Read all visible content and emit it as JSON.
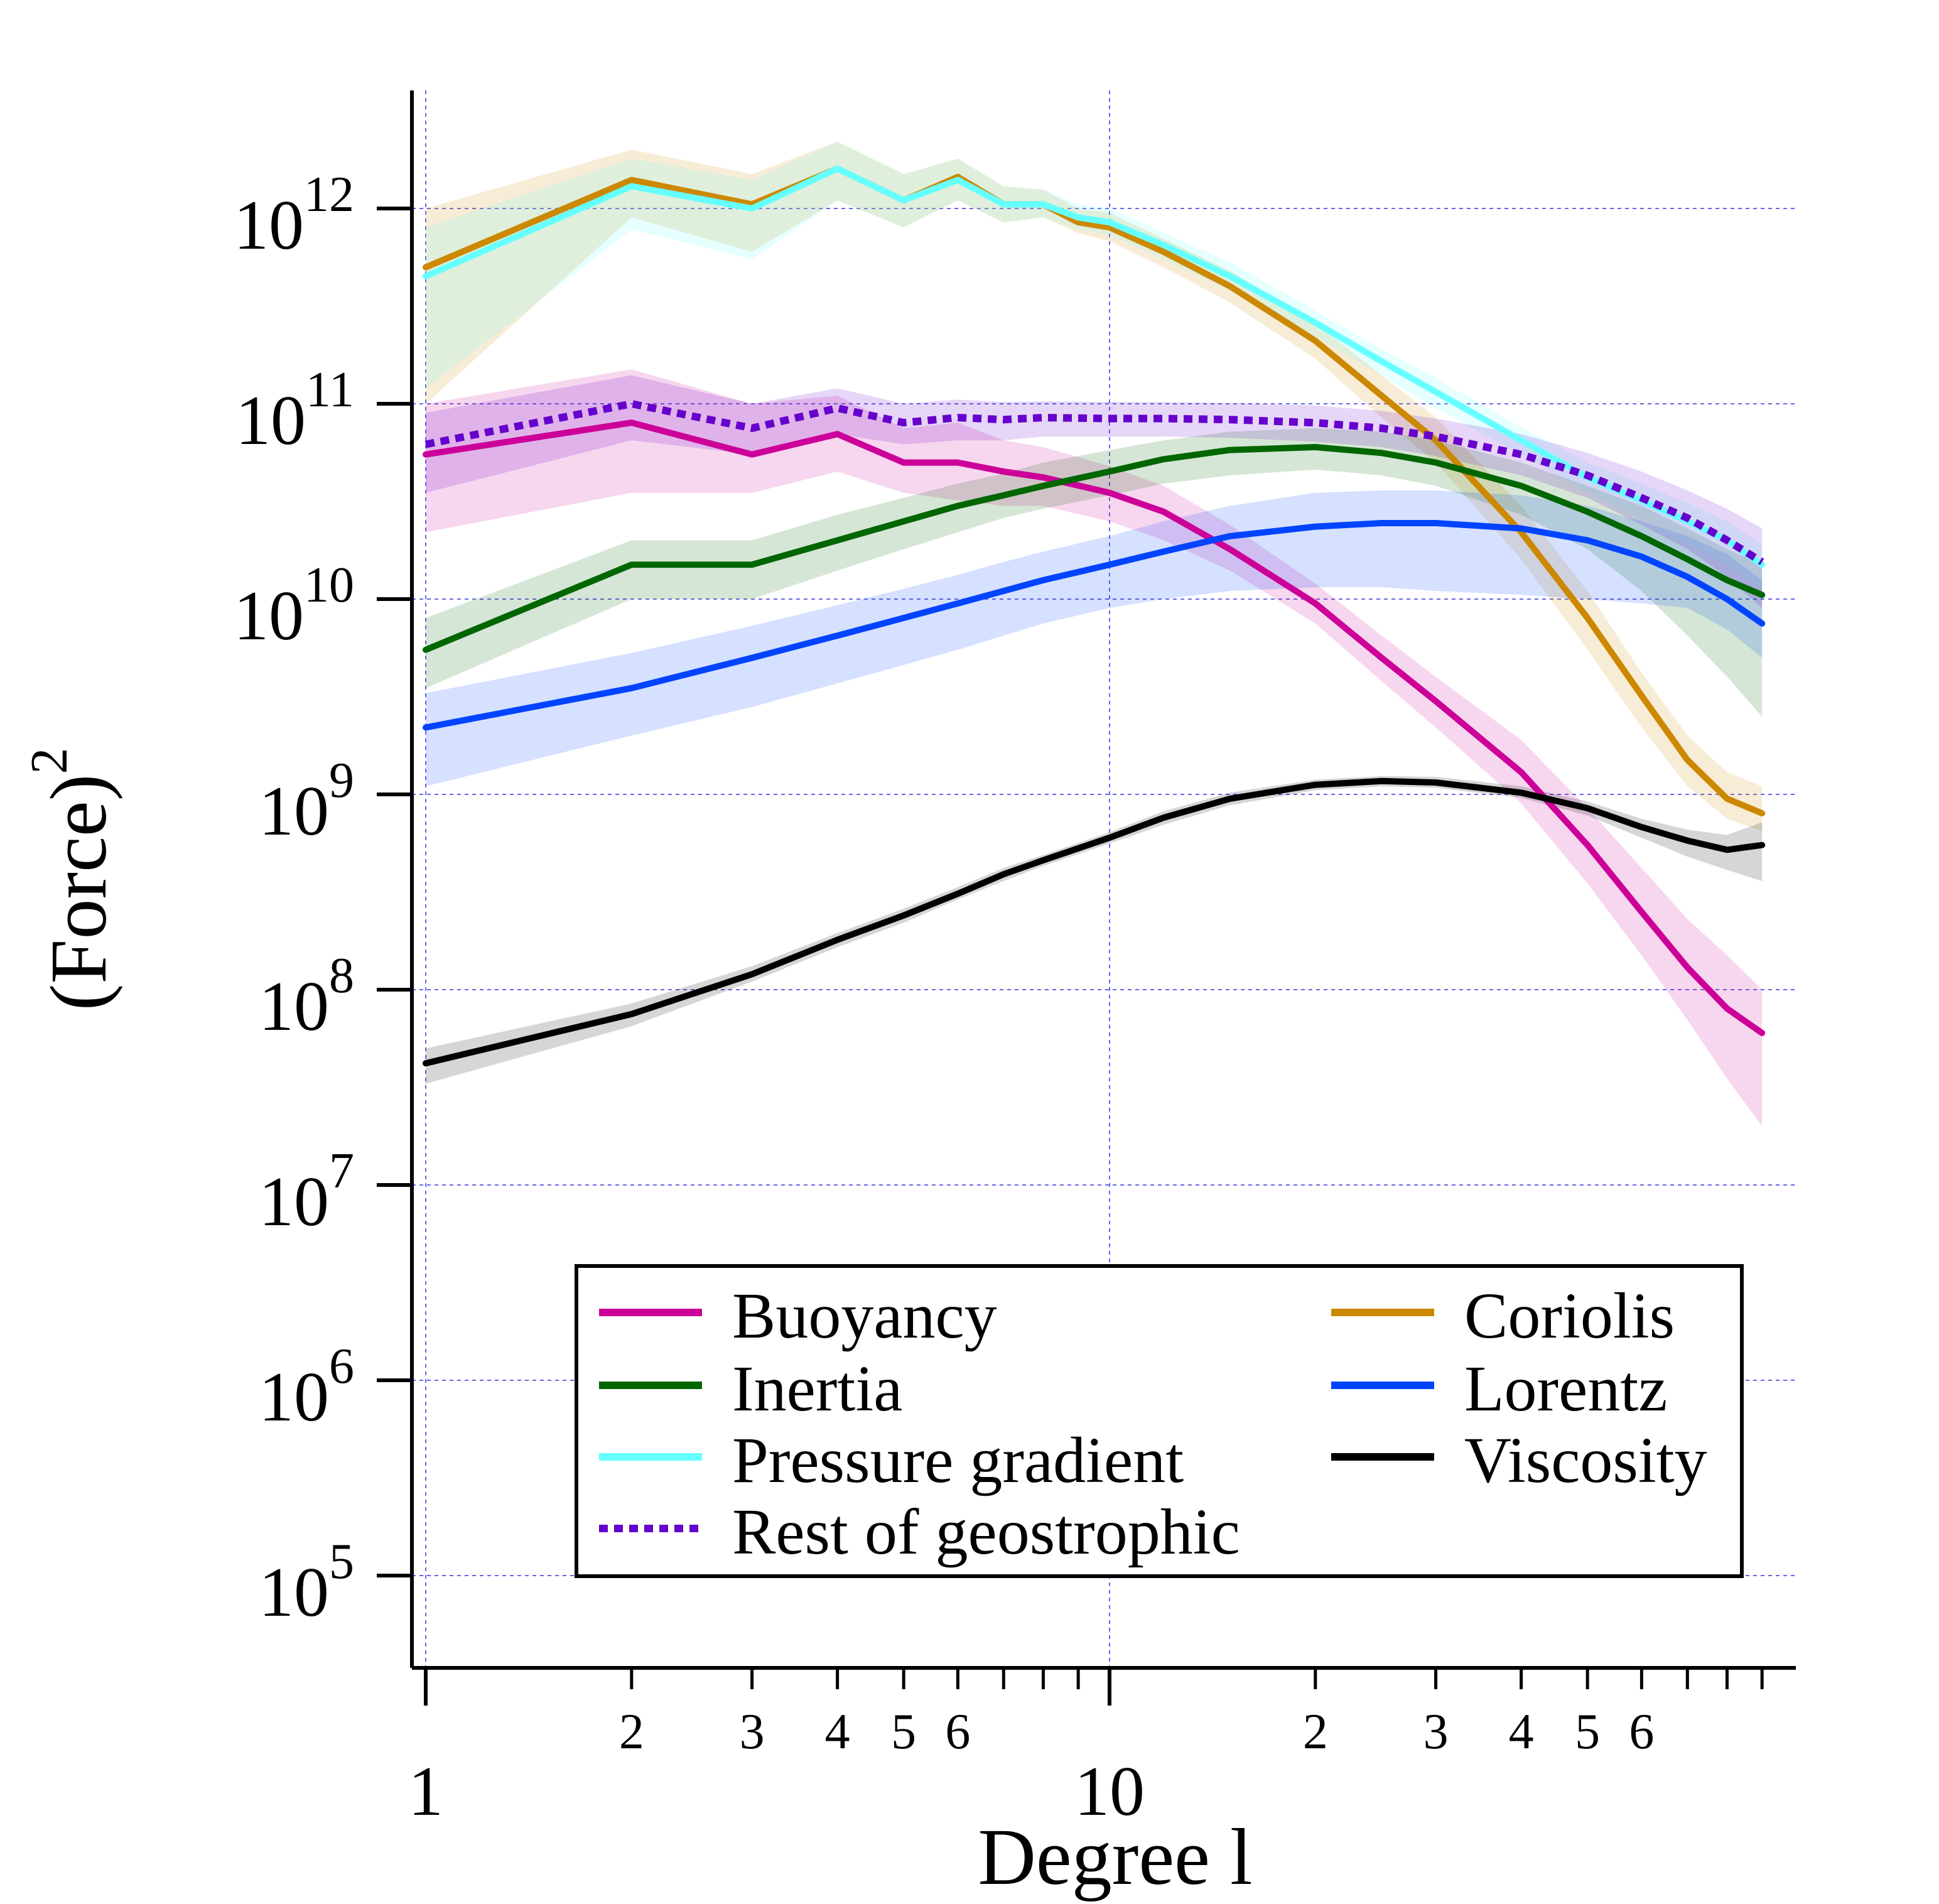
{
  "chart_data": {
    "type": "line",
    "xlabel": "Degree l",
    "ylabel": "(Force)",
    "ylabel_exponent": "2",
    "x_scale": "log",
    "y_scale": "log",
    "xlim": [
      1,
      100
    ],
    "ylim": [
      10000,
      5000000000000
    ],
    "x_major_ticks": [
      {
        "value": 1,
        "label": "1"
      },
      {
        "value": 10,
        "label": "10"
      }
    ],
    "x_minor_ticks": [
      {
        "value": 2,
        "label": "2"
      },
      {
        "value": 3,
        "label": "3"
      },
      {
        "value": 4,
        "label": "4"
      },
      {
        "value": 5,
        "label": "5"
      },
      {
        "value": 6,
        "label": "6"
      },
      {
        "value": 7,
        "label": ""
      },
      {
        "value": 8,
        "label": ""
      },
      {
        "value": 9,
        "label": ""
      },
      {
        "value": 20,
        "label": "2"
      },
      {
        "value": 30,
        "label": "3"
      },
      {
        "value": 40,
        "label": "4"
      },
      {
        "value": 50,
        "label": "5"
      },
      {
        "value": 60,
        "label": "6"
      },
      {
        "value": 70,
        "label": ""
      },
      {
        "value": 80,
        "label": ""
      },
      {
        "value": 90,
        "label": ""
      }
    ],
    "y_ticks": [
      {
        "exp": 5,
        "base": "10",
        "power": "5"
      },
      {
        "exp": 6,
        "base": "10",
        "power": "6"
      },
      {
        "exp": 7,
        "base": "10",
        "power": "7"
      },
      {
        "exp": 8,
        "base": "10",
        "power": "8"
      },
      {
        "exp": 9,
        "base": "10",
        "power": "9"
      },
      {
        "exp": 10,
        "base": "10",
        "power": "10"
      },
      {
        "exp": 11,
        "base": "10",
        "power": "11"
      },
      {
        "exp": 12,
        "base": "10",
        "power": "12"
      }
    ],
    "grid": true,
    "legend_position": "bottom-center",
    "legend_columns": 2,
    "series": [
      {
        "name": "Buoyancy",
        "color": "#cc0099",
        "style": "solid",
        "legend_col": 0,
        "legend_row": 0,
        "x": [
          1,
          2,
          3,
          4,
          5,
          6,
          7,
          8,
          10,
          12,
          15,
          20,
          25,
          30,
          40,
          50,
          60,
          70,
          80,
          90
        ],
        "y": [
          55000000000.0,
          80000000000.0,
          55000000000.0,
          70000000000.0,
          50000000000.0,
          50000000000.0,
          45000000000.0,
          42000000000.0,
          35000000000.0,
          28000000000.0,
          18000000000.0,
          9500000000.0,
          5000000000.0,
          3000000000.0,
          1300000000.0,
          550000000.0,
          250000000.0,
          130000000.0,
          80000000.0,
          60000000.0
        ],
        "lower": [
          22000000000.0,
          35000000000.0,
          35000000000.0,
          45000000000.0,
          35000000000.0,
          32000000000.0,
          30000000000.0,
          30000000000.0,
          25000000000.0,
          20000000000.0,
          14000000000.0,
          7500000000.0,
          3800000000.0,
          2200000000.0,
          900000000.0,
          350000000.0,
          150000000.0,
          70000000.0,
          35000000.0,
          20000000.0
        ],
        "upper": [
          100000000000.0,
          150000000000.0,
          100000000000.0,
          110000000000.0,
          75000000000.0,
          80000000000.0,
          65000000000.0,
          60000000000.0,
          48000000000.0,
          38000000000.0,
          24000000000.0,
          12000000000.0,
          6500000000.0,
          4000000000.0,
          1900000000.0,
          850000000.0,
          420000000.0,
          230000000.0,
          150000000.0,
          100000000.0
        ]
      },
      {
        "name": "Coriolis",
        "color": "#cc8800",
        "style": "solid",
        "legend_col": 1,
        "legend_row": 0,
        "x": [
          1,
          2,
          3,
          4,
          5,
          6,
          7,
          8,
          9,
          10,
          12,
          15,
          20,
          25,
          30,
          40,
          50,
          60,
          70,
          80,
          90
        ],
        "y": [
          500000000000.0,
          1400000000000.0,
          1050000000000.0,
          1600000000000.0,
          1100000000000.0,
          1450000000000.0,
          1050000000000.0,
          1050000000000.0,
          850000000000.0,
          800000000000.0,
          600000000000.0,
          400000000000.0,
          210000000000.0,
          110000000000.0,
          65000000000.0,
          22000000000.0,
          8000000000.0,
          3200000000.0,
          1500000000.0,
          950000000.0,
          800000000.0
        ],
        "lower": [
          100000000000.0,
          900000000000.0,
          600000000000.0,
          1100000000000.0,
          800000000000.0,
          1100000000000.0,
          850000000000.0,
          900000000000.0,
          750000000000.0,
          680000000000.0,
          500000000000.0,
          330000000000.0,
          170000000000.0,
          85000000000.0,
          50000000000.0,
          16000000000.0,
          5500000000.0,
          2200000000.0,
          1100000000.0,
          750000000.0,
          650000000.0
        ],
        "upper": [
          1000000000000.0,
          2000000000000.0,
          1500000000000.0,
          2200000000000.0,
          1500000000000.0,
          1800000000000.0,
          1300000000000.0,
          1250000000000.0,
          1000000000000.0,
          950000000000.0,
          700000000000.0,
          480000000000.0,
          260000000000.0,
          140000000000.0,
          85000000000.0,
          30000000000.0,
          11000000000.0,
          4200000000.0,
          2000000000.0,
          1300000000.0,
          1100000000.0
        ]
      },
      {
        "name": "Inertia",
        "color": "#006600",
        "style": "solid",
        "legend_col": 0,
        "legend_row": 1,
        "x": [
          1,
          2,
          3,
          4,
          5,
          6,
          7,
          8,
          10,
          12,
          15,
          20,
          25,
          30,
          40,
          50,
          60,
          70,
          80,
          90
        ],
        "y": [
          5500000000.0,
          15000000000.0,
          15000000000.0,
          20000000000.0,
          25000000000.0,
          30000000000.0,
          34000000000.0,
          38000000000.0,
          45000000000.0,
          52000000000.0,
          58000000000.0,
          60000000000.0,
          56000000000.0,
          50000000000.0,
          38000000000.0,
          28000000000.0,
          21000000000.0,
          16000000000.0,
          12500000000.0,
          10500000000.0
        ],
        "lower": [
          3500000000.0,
          10000000000.0,
          10000000000.0,
          14000000000.0,
          18000000000.0,
          22000000000.0,
          26000000000.0,
          29000000000.0,
          34000000000.0,
          39000000000.0,
          43000000000.0,
          46000000000.0,
          43000000000.0,
          38000000000.0,
          27000000000.0,
          18000000000.0,
          11000000000.0,
          6500000000.0,
          4000000000.0,
          2500000000.0
        ],
        "upper": [
          8000000000.0,
          20000000000.0,
          20000000000.0,
          27000000000.0,
          33000000000.0,
          39000000000.0,
          44000000000.0,
          50000000000.0,
          58000000000.0,
          65000000000.0,
          72000000000.0,
          75000000000.0,
          72000000000.0,
          65000000000.0,
          50000000000.0,
          38000000000.0,
          30000000000.0,
          23000000000.0,
          18000000000.0,
          15000000000.0
        ]
      },
      {
        "name": "Lorentz",
        "color": "#0044ff",
        "style": "solid",
        "legend_col": 1,
        "legend_row": 1,
        "x": [
          1,
          2,
          3,
          4,
          5,
          6,
          7,
          8,
          10,
          12,
          15,
          20,
          25,
          30,
          40,
          50,
          60,
          70,
          80,
          90
        ],
        "y": [
          2200000000.0,
          3500000000.0,
          5000000000.0,
          6500000000.0,
          8000000000.0,
          9500000000.0,
          11000000000.0,
          12500000000.0,
          15000000000.0,
          17500000000.0,
          21000000000.0,
          23500000000.0,
          24500000000.0,
          24500000000.0,
          23000000000.0,
          20000000000.0,
          16500000000.0,
          13000000000.0,
          10000000000.0,
          7500000000.0
        ],
        "lower": [
          1100000000.0,
          2000000000.0,
          2800000000.0,
          3700000000.0,
          4600000000.0,
          5500000000.0,
          6500000000.0,
          7500000000.0,
          9000000000.0,
          10000000000.0,
          11000000000.0,
          11500000000.0,
          11500000000.0,
          11000000000.0,
          10500000000.0,
          10000000000.0,
          9500000000.0,
          9000000000.0,
          7000000000.0,
          5000000000.0
        ],
        "upper": [
          3300000000.0,
          5300000000.0,
          7300000000.0,
          9300000000.0,
          11300000000.0,
          13300000000.0,
          15500000000.0,
          17500000000.0,
          21000000000.0,
          25000000000.0,
          30000000000.0,
          35000000000.0,
          36000000000.0,
          36000000000.0,
          34000000000.0,
          30000000000.0,
          25000000000.0,
          21000000000.0,
          17000000000.0,
          12500000000.0
        ]
      },
      {
        "name": "Pressure gradient",
        "color": "#66ffff",
        "style": "solid",
        "legend_col": 0,
        "legend_row": 2,
        "x": [
          1,
          2,
          3,
          4,
          5,
          6,
          7,
          8,
          9,
          10,
          12,
          15,
          20,
          25,
          30,
          40,
          50,
          60,
          70,
          80,
          90
        ],
        "y": [
          450000000000.0,
          1300000000000.0,
          1000000000000.0,
          1600000000000.0,
          1100000000000.0,
          1400000000000.0,
          1050000000000.0,
          1050000000000.0,
          900000000000.0,
          850000000000.0,
          650000000000.0,
          450000000000.0,
          260000000000.0,
          165000000000.0,
          115000000000.0,
          65000000000.0,
          42000000000.0,
          32000000000.0,
          25000000000.0,
          20000000000.0,
          15000000000.0
        ],
        "lower": [
          120000000000.0,
          780000000000.0,
          550000000000.0,
          1100000000000.0,
          800000000000.0,
          1100000000000.0,
          850000000000.0,
          900000000000.0,
          780000000000.0,
          730000000000.0,
          550000000000.0,
          380000000000.0,
          220000000000.0,
          140000000000.0,
          95000000000.0,
          55000000000.0,
          35000000000.0,
          25000000000.0,
          19000000000.0,
          15000000000.0,
          11000000000.0
        ],
        "upper": [
          800000000000.0,
          1800000000000.0,
          1400000000000.0,
          2200000000000.0,
          1500000000000.0,
          1800000000000.0,
          1300000000000.0,
          1250000000000.0,
          1050000000000.0,
          1000000000000.0,
          750000000000.0,
          530000000000.0,
          300000000000.0,
          190000000000.0,
          135000000000.0,
          76000000000.0,
          50000000000.0,
          39000000000.0,
          31000000000.0,
          25000000000.0,
          19000000000.0
        ]
      },
      {
        "name": "Viscosity",
        "color": "#000000",
        "style": "solid",
        "legend_col": 1,
        "legend_row": 2,
        "x": [
          1,
          2,
          3,
          4,
          5,
          6,
          7,
          8,
          10,
          12,
          15,
          20,
          25,
          30,
          40,
          50,
          60,
          70,
          80,
          90
        ],
        "y": [
          42000000.0,
          75000000.0,
          120000000.0,
          180000000.0,
          240000000.0,
          310000000.0,
          390000000.0,
          460000000.0,
          600000000.0,
          760000000.0,
          950000000.0,
          1120000000.0,
          1170000000.0,
          1150000000.0,
          1020000000.0,
          850000000.0,
          680000000.0,
          580000000.0,
          520000000.0,
          550000000.0
        ],
        "lower": [
          33000000.0,
          65000000.0,
          110000000.0,
          165000000.0,
          220000000.0,
          290000000.0,
          360000000.0,
          430000000.0,
          560000000.0,
          700000000.0,
          880000000.0,
          1050000000.0,
          1100000000.0,
          1080000000.0,
          960000000.0,
          780000000.0,
          600000000.0,
          480000000.0,
          410000000.0,
          360000000.0
        ],
        "upper": [
          50000000.0,
          85000000.0,
          132000000.0,
          195000000.0,
          260000000.0,
          335000000.0,
          420000000.0,
          490000000.0,
          640000000.0,
          820000000.0,
          1020000000.0,
          1190000000.0,
          1240000000.0,
          1230000000.0,
          1100000000.0,
          920000000.0,
          750000000.0,
          660000000.0,
          620000000.0,
          720000000.0
        ]
      },
      {
        "name": "Rest of geostrophic",
        "color": "#6600cc",
        "style": "dotted",
        "legend_col": 0,
        "legend_row": 3,
        "x": [
          1,
          2,
          3,
          4,
          5,
          6,
          7,
          8,
          10,
          12,
          15,
          20,
          25,
          30,
          40,
          50,
          60,
          70,
          80,
          90
        ],
        "y": [
          62000000000.0,
          100000000000.0,
          75000000000.0,
          95000000000.0,
          80000000000.0,
          85000000000.0,
          83000000000.0,
          85000000000.0,
          84000000000.0,
          84000000000.0,
          83000000000.0,
          80000000000.0,
          75000000000.0,
          68000000000.0,
          55000000000.0,
          43000000000.0,
          33000000000.0,
          26000000000.0,
          20000000000.0,
          15500000000.0
        ],
        "lower": [
          35000000000.0,
          65000000000.0,
          55000000000.0,
          70000000000.0,
          62000000000.0,
          65000000000.0,
          65000000000.0,
          68000000000.0,
          68000000000.0,
          68000000000.0,
          67000000000.0,
          64000000000.0,
          60000000000.0,
          54000000000.0,
          43000000000.0,
          33000000000.0,
          24000000000.0,
          18000000000.0,
          13000000000.0,
          9000000000.0
        ],
        "upper": [
          90000000000.0,
          140000000000.0,
          100000000000.0,
          120000000000.0,
          100000000000.0,
          105000000000.0,
          102000000000.0,
          103000000000.0,
          102000000000.0,
          102000000000.0,
          101000000000.0,
          98000000000.0,
          92000000000.0,
          84000000000.0,
          70000000000.0,
          56000000000.0,
          45000000000.0,
          36000000000.0,
          29000000000.0,
          23000000000.0
        ]
      }
    ]
  }
}
